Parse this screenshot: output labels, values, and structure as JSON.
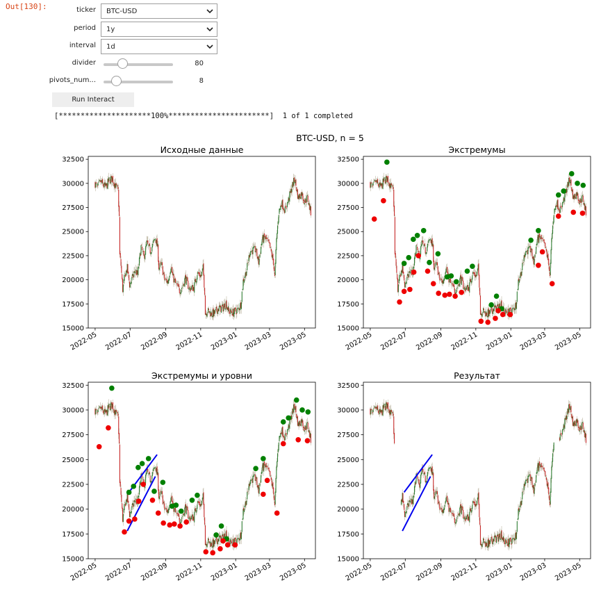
{
  "cell": {
    "out_label": "Out[130]:"
  },
  "widgets": {
    "ticker": {
      "label": "ticker",
      "value": "BTC-USD"
    },
    "period": {
      "label": "period",
      "value": "1y"
    },
    "interval": {
      "label": "interval",
      "value": "1d"
    },
    "divider": {
      "label": "divider",
      "value": "80",
      "fraction": 0.27
    },
    "pivots": {
      "label": "pivots_num...",
      "value": "8",
      "fraction": 0.18
    },
    "run_button": "Run Interact"
  },
  "progress": {
    "text": "[*********************100%***********************]  1 of 1 completed"
  },
  "figure": {
    "suptitle": "BTC-USD, n = 5"
  },
  "chart_data": [
    {
      "type": "candlestick",
      "title": "Исходные данные",
      "yticks": [
        15000,
        17500,
        20000,
        22500,
        25000,
        27500,
        30000,
        32500
      ],
      "ytick_labels": [
        "15000",
        "17500",
        "20000",
        "22500",
        "25000",
        "27500",
        "30000",
        "32500"
      ],
      "xticks": [
        "2022-05",
        "2022-07",
        "2022-09",
        "2022-11",
        "2023-01",
        "2023-03",
        "2023-05"
      ],
      "ylim": [
        15000,
        32800
      ],
      "xlim": [
        "2022-04-19",
        "2023-05-20"
      ],
      "markers": false,
      "lines": false,
      "gaps": false
    },
    {
      "type": "candlestick",
      "title": "Экстремумы",
      "yticks": [
        15000,
        17500,
        20000,
        22500,
        25000,
        27500,
        30000,
        32500
      ],
      "ytick_labels": [
        "15000",
        "17500",
        "20000",
        "22500",
        "25000",
        "27500",
        "30000",
        "32500"
      ],
      "xticks": [
        "2022-05",
        "2022-07",
        "2022-09",
        "2022-11",
        "2023-01",
        "2023-03",
        "2023-05"
      ],
      "ylim": [
        15000,
        32800
      ],
      "xlim": [
        "2022-04-19",
        "2023-05-20"
      ],
      "markers": true,
      "lines": false,
      "gaps": false
    },
    {
      "type": "candlestick",
      "title": "Экстремумы и уровни",
      "yticks": [
        15000,
        17500,
        20000,
        22500,
        25000,
        27500,
        30000,
        32500
      ],
      "ytick_labels": [
        "15000",
        "17500",
        "20000",
        "22500",
        "25000",
        "27500",
        "30000",
        "32500"
      ],
      "xticks": [
        "2022-05",
        "2022-07",
        "2022-09",
        "2022-11",
        "2023-01",
        "2023-03",
        "2023-05"
      ],
      "ylim": [
        15000,
        32800
      ],
      "xlim": [
        "2022-04-19",
        "2023-05-20"
      ],
      "markers": true,
      "lines": true,
      "gaps": false
    },
    {
      "type": "candlestick",
      "title": "Результат",
      "yticks": [
        15000,
        17500,
        20000,
        22500,
        25000,
        27500,
        30000,
        32500
      ],
      "ytick_labels": [
        "15000",
        "17500",
        "20000",
        "22500",
        "25000",
        "27500",
        "30000",
        "32500"
      ],
      "xticks": [
        "2022-05",
        "2022-07",
        "2022-09",
        "2022-11",
        "2023-01",
        "2023-03",
        "2023-05"
      ],
      "ylim": [
        15000,
        32800
      ],
      "xlim": [
        "2022-04-19",
        "2023-05-20"
      ],
      "markers": false,
      "lines": true,
      "gaps": true
    }
  ],
  "price_path": [
    [
      "2022-05-01",
      30000
    ],
    [
      "2022-05-05",
      29500
    ],
    [
      "2022-05-10",
      30200
    ],
    [
      "2022-05-15",
      29800
    ],
    [
      "2022-05-20",
      29600
    ],
    [
      "2022-05-25",
      30300
    ],
    [
      "2022-05-31",
      30500
    ],
    [
      "2022-06-05",
      29800
    ],
    [
      "2022-06-10",
      29200
    ],
    [
      "2022-06-12",
      26500
    ],
    [
      "2022-06-13",
      22500
    ],
    [
      "2022-06-15",
      21500
    ],
    [
      "2022-06-18",
      19000
    ],
    [
      "2022-06-22",
      20500
    ],
    [
      "2022-06-26",
      21200
    ],
    [
      "2022-06-30",
      19500
    ],
    [
      "2022-07-05",
      20200
    ],
    [
      "2022-07-10",
      21000
    ],
    [
      "2022-07-14",
      20500
    ],
    [
      "2022-07-20",
      23400
    ],
    [
      "2022-07-25",
      22300
    ],
    [
      "2022-07-30",
      23800
    ],
    [
      "2022-08-05",
      23000
    ],
    [
      "2022-08-10",
      23700
    ],
    [
      "2022-08-14",
      24400
    ],
    [
      "2022-08-18",
      23300
    ],
    [
      "2022-08-20",
      21300
    ],
    [
      "2022-08-25",
      21500
    ],
    [
      "2022-08-30",
      20000
    ],
    [
      "2022-09-05",
      19800
    ],
    [
      "2022-09-10",
      21500
    ],
    [
      "2022-09-13",
      20400
    ],
    [
      "2022-09-18",
      19600
    ],
    [
      "2022-09-25",
      18900
    ],
    [
      "2022-10-01",
      19400
    ],
    [
      "2022-10-05",
      20200
    ],
    [
      "2022-10-12",
      19100
    ],
    [
      "2022-10-20",
      19200
    ],
    [
      "2022-10-26",
      20700
    ],
    [
      "2022-11-02",
      20400
    ],
    [
      "2022-11-05",
      21200
    ],
    [
      "2022-11-08",
      18800
    ],
    [
      "2022-11-09",
      16500
    ],
    [
      "2022-11-12",
      16800
    ],
    [
      "2022-11-20",
      16500
    ],
    [
      "2022-11-25",
      16500
    ],
    [
      "2022-12-01",
      17000
    ],
    [
      "2022-12-10",
      17100
    ],
    [
      "2022-12-15",
      17600
    ],
    [
      "2022-12-20",
      16700
    ],
    [
      "2022-12-28",
      16600
    ],
    [
      "2023-01-05",
      16900
    ],
    [
      "2023-01-10",
      17500
    ],
    [
      "2023-01-14",
      19900
    ],
    [
      "2023-01-20",
      21000
    ],
    [
      "2023-01-26",
      23000
    ],
    [
      "2023-02-05",
      23100
    ],
    [
      "2023-02-10",
      21800
    ],
    [
      "2023-02-16",
      24200
    ],
    [
      "2023-02-22",
      24300
    ],
    [
      "2023-03-01",
      23500
    ],
    [
      "2023-03-08",
      21800
    ],
    [
      "2023-03-10",
      20200
    ],
    [
      "2023-03-13",
      24100
    ],
    [
      "2023-03-17",
      27000
    ],
    [
      "2023-03-22",
      28000
    ],
    [
      "2023-03-28",
      27200
    ],
    [
      "2023-04-03",
      28300
    ],
    [
      "2023-04-11",
      30000
    ],
    [
      "2023-04-14",
      30400
    ],
    [
      "2023-04-20",
      28500
    ],
    [
      "2023-04-26",
      29000
    ],
    [
      "2023-05-01",
      28100
    ],
    [
      "2023-05-06",
      28500
    ],
    [
      "2023-05-10",
      27500
    ],
    [
      "2023-05-12",
      27000
    ]
  ],
  "highs": [
    [
      "2022-06-29",
      21700
    ],
    [
      "2022-07-07",
      22300
    ],
    [
      "2022-07-15",
      24200
    ],
    [
      "2022-07-22",
      24600
    ],
    [
      "2022-08-02",
      25100
    ],
    [
      "2022-08-12",
      21800
    ],
    [
      "2022-08-27",
      22700
    ],
    [
      "2022-09-12",
      20300
    ],
    [
      "2022-09-19",
      20400
    ],
    [
      "2022-09-28",
      19800
    ],
    [
      "2022-10-17",
      20900
    ],
    [
      "2022-10-26",
      21400
    ],
    [
      "2022-11-28",
      17400
    ],
    [
      "2022-12-07",
      18300
    ],
    [
      "2022-12-16",
      17000
    ],
    [
      "2023-02-05",
      24100
    ],
    [
      "2023-02-18",
      25100
    ],
    [
      "2023-03-25",
      28800
    ],
    [
      "2023-04-03",
      29200
    ],
    [
      "2023-04-17",
      31000
    ],
    [
      "2023-04-27",
      30000
    ],
    [
      "2023-05-07",
      29800
    ],
    [
      "2022-05-30",
      32200
    ]
  ],
  "lows": [
    [
      "2022-05-08",
      26300
    ],
    [
      "2022-05-24",
      28200
    ],
    [
      "2022-06-21",
      17700
    ],
    [
      "2022-06-29",
      18800
    ],
    [
      "2022-07-09",
      19000
    ],
    [
      "2022-07-16",
      20800
    ],
    [
      "2022-07-24",
      22500
    ],
    [
      "2022-08-09",
      20900
    ],
    [
      "2022-08-19",
      19600
    ],
    [
      "2022-08-28",
      18600
    ],
    [
      "2022-09-08",
      18400
    ],
    [
      "2022-09-16",
      18500
    ],
    [
      "2022-09-26",
      18300
    ],
    [
      "2022-10-07",
      18700
    ],
    [
      "2022-11-10",
      15700
    ],
    [
      "2022-11-22",
      15600
    ],
    [
      "2022-12-05",
      16000
    ],
    [
      "2022-12-10",
      16800
    ],
    [
      "2022-12-18",
      16400
    ],
    [
      "2022-12-31",
      16400
    ],
    [
      "2023-02-18",
      21500
    ],
    [
      "2023-02-25",
      22900
    ],
    [
      "2023-03-14",
      19600
    ],
    [
      "2023-03-25",
      26600
    ],
    [
      "2023-04-20",
      27000
    ],
    [
      "2023-05-06",
      26900
    ]
  ],
  "levels": [
    {
      "from": [
        "2022-06-29",
        21700
      ],
      "to": [
        "2022-08-17",
        25500
      ]
    },
    {
      "from": [
        "2022-06-26",
        17800
      ],
      "to": [
        "2022-08-14",
        23300
      ]
    }
  ],
  "result_gaps": [
    [
      "2022-06-12",
      "2022-06-24"
    ],
    [
      "2023-03-17",
      "2023-03-27"
    ]
  ]
}
